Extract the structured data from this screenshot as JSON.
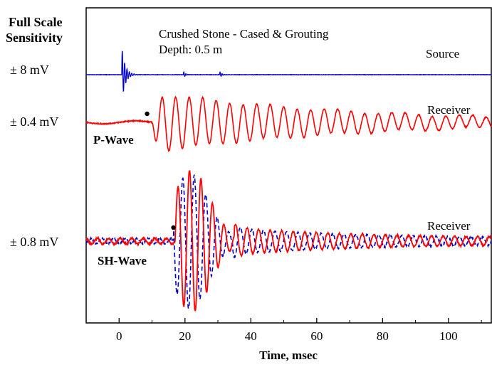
{
  "chart_data": {
    "type": "line",
    "title": "Crushed Stone - Cased & Grouting",
    "subtitle": "Depth: 0.5 m",
    "xlabel": "Time, msec",
    "ylabel": "Full Scale Sensitivity",
    "ylabel_line1": "Full Scale",
    "ylabel_line2": "Sensitivity",
    "xlim": [
      -10,
      113
    ],
    "xticks": [
      0,
      20,
      40,
      60,
      80,
      100
    ],
    "xtick_labels": [
      "0",
      "20",
      "40",
      "60",
      "80",
      "100"
    ],
    "grid": false,
    "colors": {
      "source": "#0000cc",
      "receiver": "#ff0000",
      "sh_dashed": "#0000cc"
    },
    "traces": [
      {
        "name": "Source",
        "label": "Source",
        "sensitivity": "± 8 mV",
        "color": "#0000cc",
        "style": "solid",
        "baseline": 0,
        "onset_ms": 0.8,
        "peak_amplitude": 1.0,
        "decay_ms": 1.0,
        "freq_khz": 1.4,
        "secondary_burst_ms": [
          19.5,
          30.5
        ]
      },
      {
        "name": "P-Wave receiver",
        "label": "Receiver",
        "wave_label": "P-Wave",
        "sensitivity": "± 0.4 mV",
        "color": "#ff0000",
        "style": "solid",
        "arrival_marker_ms": 8.5,
        "onset_ms": 10,
        "period_ms": 4.1,
        "peak_amplitude": 1.0,
        "decay_ms": 60
      },
      {
        "name": "SH-Wave receiver",
        "label": "Receiver",
        "wave_label": "SH-Wave",
        "sensitivity": "± 0.8 mV",
        "color": "#ff0000",
        "style": "solid",
        "arrival_marker_ms": 16.5,
        "onset_ms": 17,
        "period_ms": 3.5,
        "peak_ms": 22,
        "peak_amplitude": 1.0
      },
      {
        "name": "SH-Wave receiver (reversed polarity)",
        "label": "",
        "sensitivity": "",
        "color": "#0000cc",
        "style": "dashed",
        "onset_ms": 17,
        "period_ms": 3.5,
        "peak_ms": 22,
        "peak_amplitude": 1.0
      }
    ]
  }
}
